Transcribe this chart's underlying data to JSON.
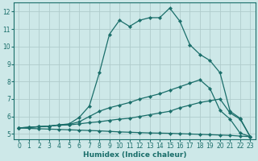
{
  "xlabel": "Humidex (Indice chaleur)",
  "bg_color": "#cde8e8",
  "line_color": "#1a6e6a",
  "grid_color": "#b0cccc",
  "xlim": [
    -0.5,
    23.5
  ],
  "ylim": [
    4.7,
    12.5
  ],
  "xticks": [
    0,
    1,
    2,
    3,
    4,
    5,
    6,
    7,
    8,
    9,
    10,
    11,
    12,
    13,
    14,
    15,
    16,
    17,
    18,
    19,
    20,
    21,
    22,
    23
  ],
  "yticks": [
    5,
    6,
    7,
    8,
    9,
    10,
    11,
    12
  ],
  "line1_x": [
    0,
    1,
    2,
    3,
    4,
    5,
    6,
    7,
    8,
    9,
    10,
    11,
    12,
    13,
    14,
    15,
    16,
    17,
    18,
    19,
    20,
    21,
    22,
    23
  ],
  "line1_y": [
    5.35,
    5.38,
    5.42,
    5.45,
    5.52,
    5.58,
    5.95,
    6.6,
    8.5,
    10.7,
    11.5,
    11.15,
    11.5,
    11.65,
    11.65,
    12.2,
    11.45,
    10.1,
    9.55,
    9.2,
    8.5,
    6.3,
    5.9,
    4.85
  ],
  "line2_x": [
    0,
    1,
    2,
    3,
    4,
    5,
    6,
    7,
    8,
    9,
    10,
    11,
    12,
    13,
    14,
    15,
    16,
    17,
    18,
    19,
    20,
    21,
    22,
    23
  ],
  "line2_y": [
    5.35,
    5.38,
    5.42,
    5.45,
    5.52,
    5.55,
    5.7,
    6.0,
    6.3,
    6.5,
    6.65,
    6.8,
    7.0,
    7.15,
    7.3,
    7.5,
    7.7,
    7.9,
    8.1,
    7.6,
    6.35,
    5.85,
    5.05,
    4.85
  ],
  "line3_x": [
    0,
    1,
    2,
    3,
    4,
    5,
    6,
    7,
    8,
    9,
    10,
    11,
    12,
    13,
    14,
    15,
    16,
    17,
    18,
    19,
    20,
    21,
    22,
    23
  ],
  "line3_y": [
    5.35,
    5.38,
    5.42,
    5.45,
    5.5,
    5.52,
    5.58,
    5.65,
    5.7,
    5.78,
    5.85,
    5.9,
    6.0,
    6.1,
    6.2,
    6.3,
    6.5,
    6.65,
    6.8,
    6.9,
    7.0,
    6.2,
    5.85,
    4.85
  ],
  "line4_x": [
    0,
    1,
    2,
    3,
    4,
    5,
    6,
    7,
    8,
    9,
    10,
    11,
    12,
    13,
    14,
    15,
    16,
    17,
    18,
    19,
    20,
    21,
    22,
    23
  ],
  "line4_y": [
    5.35,
    5.32,
    5.3,
    5.28,
    5.26,
    5.24,
    5.22,
    5.2,
    5.18,
    5.15,
    5.12,
    5.1,
    5.08,
    5.06,
    5.05,
    5.04,
    5.02,
    5.0,
    4.98,
    4.96,
    4.94,
    4.92,
    4.88,
    4.85
  ],
  "marker": "D",
  "marker_size": 2.2,
  "linewidth": 0.9,
  "tick_fontsize": 5.5,
  "xlabel_fontsize": 6.5
}
